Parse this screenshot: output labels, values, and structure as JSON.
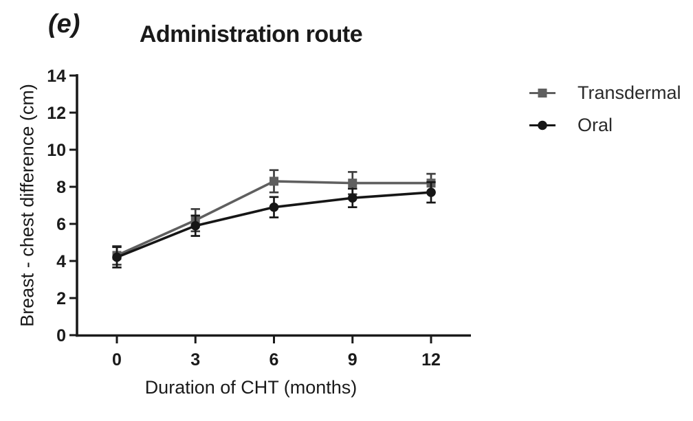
{
  "figure": {
    "panel_label": "(e)",
    "background": "#ffffff",
    "text_color": "#1a1a1a",
    "axis_color": "#1a1a1a"
  },
  "chart_data": {
    "type": "line",
    "title": "Administration route",
    "xlabel": "Duration of CHT (months)",
    "ylabel": "Breast - chest difference (cm)",
    "x": [
      0,
      3,
      6,
      9,
      12
    ],
    "xlim": [
      0,
      12
    ],
    "ylim": [
      0,
      14
    ],
    "yticks": [
      0,
      2,
      4,
      6,
      8,
      10,
      12,
      14
    ],
    "grid": false,
    "error_bars": true,
    "legend_position": "right",
    "series": [
      {
        "name": "Transdermal",
        "marker": "square",
        "color": "#5f5f5f",
        "error_color": "#3f3f3f",
        "values": [
          4.3,
          6.2,
          8.3,
          8.2,
          8.2
        ],
        "errors": [
          0.5,
          0.6,
          0.6,
          0.6,
          0.5
        ]
      },
      {
        "name": "Oral",
        "marker": "circle",
        "color": "#161616",
        "error_color": "#161616",
        "values": [
          4.2,
          5.9,
          6.9,
          7.4,
          7.7
        ],
        "errors": [
          0.55,
          0.55,
          0.55,
          0.5,
          0.55
        ]
      }
    ]
  }
}
